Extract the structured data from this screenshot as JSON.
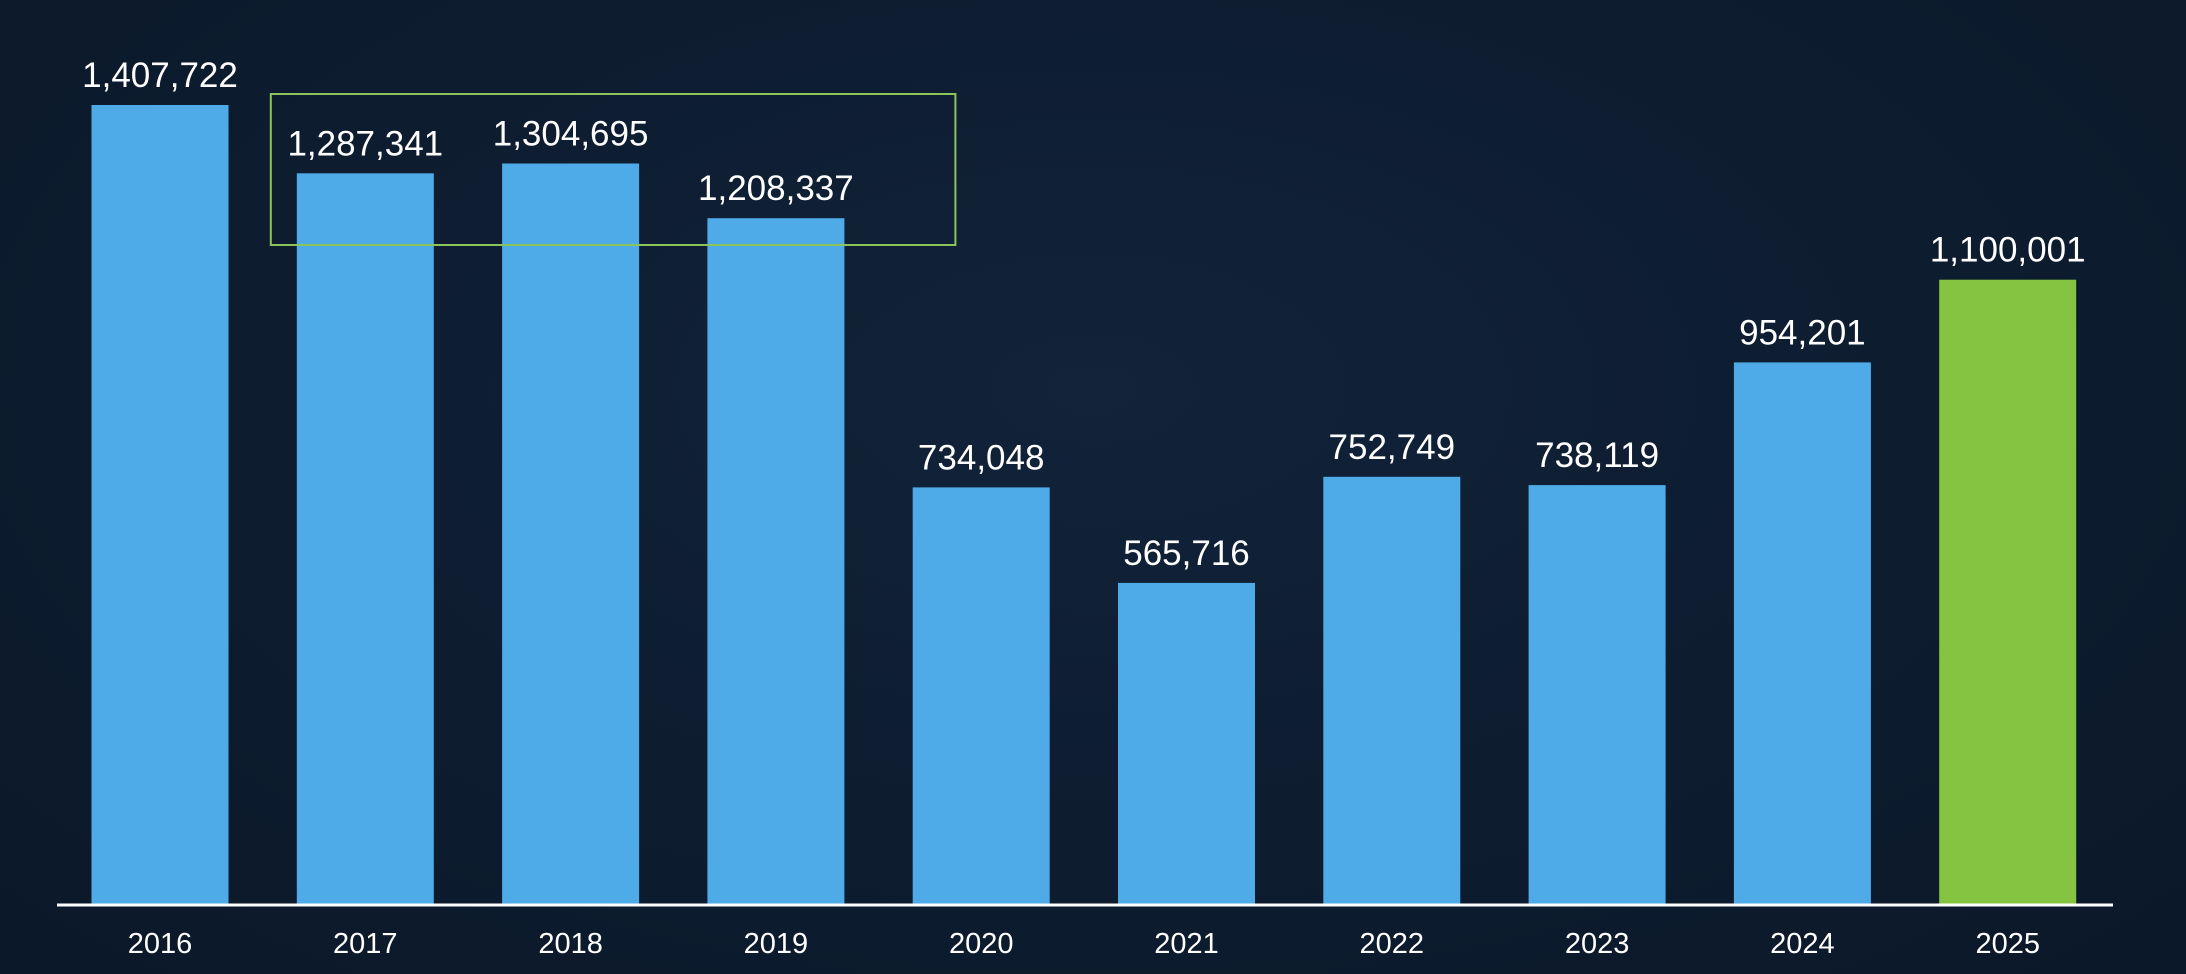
{
  "chart_data": {
    "type": "bar",
    "title": "",
    "xlabel": "",
    "ylabel": "",
    "ylim": [
      0,
      1407722
    ],
    "grid": false,
    "categories": [
      "2016",
      "2017",
      "2018",
      "2019",
      "2020",
      "2021",
      "2022",
      "2023",
      "2024",
      "2025"
    ],
    "values": [
      1407722,
      1287341,
      1304695,
      1208337,
      734048,
      565716,
      752749,
      738119,
      954201,
      1100001
    ],
    "value_labels": [
      "1,407,722",
      "1,287,341",
      "1,304,695",
      "1,208,337",
      "734,048",
      "565,716",
      "752,749",
      "738,119",
      "954,201",
      "1,100,001"
    ],
    "highlight_category": "2025",
    "highlight_box_categories": [
      "2017",
      "2018",
      "2019"
    ],
    "colors": {
      "bar": "#4faae8",
      "highlight_bar": "#84c440",
      "highlight_box": "#8dc45a",
      "axis": "#ffffff",
      "text": "#ffffff"
    }
  }
}
